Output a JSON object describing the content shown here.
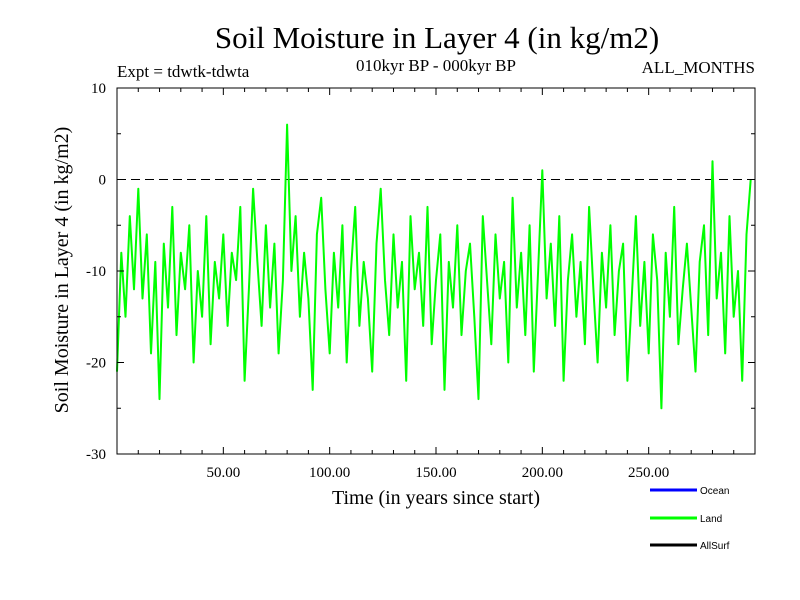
{
  "chart_data": {
    "type": "line",
    "title": "Soil Moisture in Layer 4 (in kg/m2)",
    "subtitle_left": "Expt = tdwtk-tdwta",
    "subtitle_center": "010kyr BP - 000kyr BP",
    "subtitle_right": "ALL_MONTHS",
    "xlabel": "Time (in years since start)",
    "ylabel": "Soil Moisture in Layer 4 (in kg/m2)",
    "xlim": [
      0,
      300
    ],
    "ylim": [
      -30,
      10
    ],
    "x_ticks": [
      50,
      100,
      150,
      200,
      250
    ],
    "x_tick_labels": [
      "50.00",
      "100.00",
      "150.00",
      "200.00",
      "250.00"
    ],
    "y_ticks": [
      10,
      0,
      -10,
      -20,
      -30
    ],
    "y_tick_labels": [
      "10",
      "0",
      "-10",
      "-20",
      "-30"
    ],
    "reference_line": {
      "y": 0,
      "style": "dashed"
    },
    "series": [
      {
        "name": "Land",
        "color": "#00ff00",
        "x": [
          0,
          2,
          4,
          6,
          8,
          10,
          12,
          14,
          16,
          18,
          20,
          22,
          24,
          26,
          28,
          30,
          32,
          34,
          36,
          38,
          40,
          42,
          44,
          46,
          48,
          50,
          52,
          54,
          56,
          58,
          60,
          62,
          64,
          66,
          68,
          70,
          72,
          74,
          76,
          78,
          80,
          82,
          84,
          86,
          88,
          90,
          92,
          94,
          96,
          98,
          100,
          102,
          104,
          106,
          108,
          110,
          112,
          114,
          116,
          118,
          120,
          122,
          124,
          126,
          128,
          130,
          132,
          134,
          136,
          138,
          140,
          142,
          144,
          146,
          148,
          150,
          152,
          154,
          156,
          158,
          160,
          162,
          164,
          166,
          168,
          170,
          172,
          174,
          176,
          178,
          180,
          182,
          184,
          186,
          188,
          190,
          192,
          194,
          196,
          198,
          200,
          202,
          204,
          206,
          208,
          210,
          212,
          214,
          216,
          218,
          220,
          222,
          224,
          226,
          228,
          230,
          232,
          234,
          236,
          238,
          240,
          242,
          244,
          246,
          248,
          250,
          252,
          254,
          256,
          258,
          260,
          262,
          264,
          266,
          268,
          270,
          272,
          274,
          276,
          278,
          280,
          282,
          284,
          286,
          288,
          290,
          292,
          294,
          296,
          298
        ],
        "y": [
          -21,
          -8,
          -15,
          -4,
          -12,
          -1,
          -13,
          -6,
          -19,
          -9,
          -24,
          -7,
          -14,
          -3,
          -17,
          -8,
          -12,
          -5,
          -20,
          -10,
          -15,
          -4,
          -18,
          -9,
          -13,
          -6,
          -16,
          -8,
          -11,
          -3,
          -22,
          -12,
          -1,
          -9,
          -16,
          -5,
          -14,
          -7,
          -19,
          -11,
          6,
          -10,
          -4,
          -15,
          -8,
          -13,
          -23,
          -6,
          -2,
          -12,
          -19,
          -8,
          -14,
          -5,
          -20,
          -10,
          -3,
          -16,
          -9,
          -13,
          -21,
          -7,
          -1,
          -11,
          -17,
          -6,
          -14,
          -9,
          -22,
          -4,
          -12,
          -8,
          -16,
          -3,
          -18,
          -11,
          -6,
          -23,
          -9,
          -14,
          -5,
          -17,
          -10,
          -7,
          -15,
          -24,
          -4,
          -11,
          -18,
          -6,
          -13,
          -9,
          -20,
          -2,
          -14,
          -8,
          -17,
          -5,
          -21,
          -10,
          1,
          -13,
          -7,
          -16,
          -4,
          -22,
          -11,
          -6,
          -15,
          -9,
          -18,
          -3,
          -12,
          -20,
          -8,
          -14,
          -5,
          -17,
          -10,
          -7,
          -22,
          -13,
          -4,
          -16,
          -9,
          -19,
          -6,
          -11,
          -25,
          -8,
          -15,
          -3,
          -18,
          -12,
          -7,
          -14,
          -21,
          -9,
          -5,
          -17,
          2,
          -13,
          -8,
          -19,
          -4,
          -15,
          -10,
          -22,
          -6,
          0
        ]
      }
    ]
  },
  "legend": {
    "items": [
      {
        "label": "Ocean",
        "color": "#0000ff"
      },
      {
        "label": "Land",
        "color": "#00ff00"
      },
      {
        "label": "AllSurf",
        "color": "#000000"
      }
    ]
  }
}
